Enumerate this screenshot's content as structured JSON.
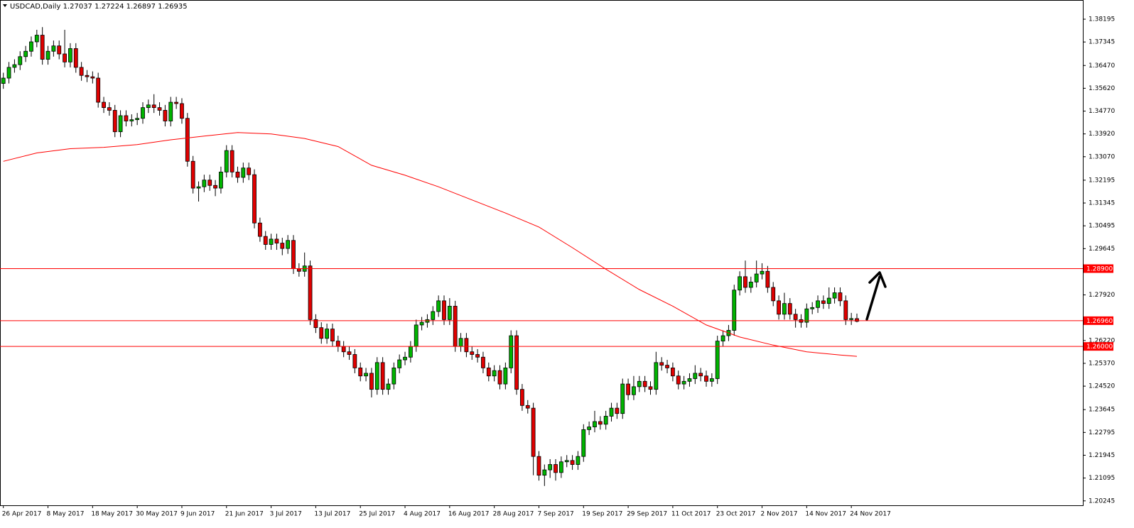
{
  "chart_data": {
    "type": "candlestick",
    "title": "USDCAD,Daily",
    "up_color": "#00b400",
    "down_color": "#e00000",
    "open": [
      1.358,
      1.36,
      1.364,
      1.365,
      1.368,
      1.37,
      1.3735,
      1.376,
      1.367,
      1.37,
      1.372,
      1.369,
      1.366,
      1.371,
      1.364,
      1.361,
      1.3605,
      1.36,
      1.351,
      1.349,
      1.348,
      1.34,
      1.346,
      1.344,
      1.3445,
      1.345,
      1.349,
      1.35,
      1.349,
      1.348,
      1.344,
      1.351,
      1.3505,
      1.345,
      1.329,
      1.319,
      1.3195,
      1.322,
      1.32,
      1.319,
      1.325,
      1.333,
      1.325,
      1.323,
      1.3265,
      1.324,
      1.306,
      1.301,
      1.298,
      1.3,
      1.2985,
      1.2965,
      1.2995,
      1.289,
      1.288,
      1.29,
      1.27,
      1.267,
      1.263,
      1.2665,
      1.262,
      1.26,
      1.258,
      1.257,
      1.252,
      1.249,
      1.25,
      1.244,
      1.254,
      1.244,
      1.246,
      1.252,
      1.255,
      1.256,
      1.26,
      1.268,
      1.269,
      1.27,
      1.273,
      1.277,
      1.27,
      1.275,
      1.26,
      1.263,
      1.258,
      1.257,
      1.256,
      1.252,
      1.249,
      1.251,
      1.246,
      1.252,
      1.264,
      1.244,
      1.238,
      1.237,
      1.219,
      1.212,
      1.214,
      1.216,
      1.213,
      1.217,
      1.2175,
      1.216,
      1.219,
      1.229,
      1.23,
      1.232,
      1.231,
      1.234,
      1.237,
      1.235,
      1.246,
      1.242,
      1.245,
      1.247,
      1.245,
      1.244,
      1.254,
      1.253,
      1.252,
      1.249,
      1.246,
      1.247,
      1.248,
      1.25,
      1.249,
      1.247,
      1.248,
      1.262,
      1.264,
      1.266,
      1.281,
      1.286,
      1.282,
      1.284,
      1.287,
      1.288,
      1.282,
      1.277,
      1.272,
      1.276,
      1.272,
      1.27,
      1.269,
      1.274,
      1.2745,
      1.277,
      1.276,
      1.278,
      1.28,
      1.277,
      1.27,
      1.27037
    ],
    "high": [
      1.362,
      1.366,
      1.367,
      1.37,
      1.372,
      1.3755,
      1.378,
      1.379,
      1.372,
      1.374,
      1.374,
      1.378,
      1.373,
      1.373,
      1.366,
      1.363,
      1.3625,
      1.362,
      1.353,
      1.351,
      1.35,
      1.348,
      1.348,
      1.3465,
      1.347,
      1.351,
      1.352,
      1.354,
      1.351,
      1.35,
      1.353,
      1.353,
      1.3525,
      1.347,
      1.331,
      1.3215,
      1.324,
      1.324,
      1.322,
      1.327,
      1.335,
      1.335,
      1.327,
      1.3285,
      1.3285,
      1.326,
      1.308,
      1.303,
      1.302,
      1.302,
      1.3005,
      1.3015,
      1.3015,
      1.291,
      1.295,
      1.292,
      1.272,
      1.269,
      1.2685,
      1.2685,
      1.264,
      1.262,
      1.26,
      1.259,
      1.254,
      1.252,
      1.252,
      1.256,
      1.256,
      1.248,
      1.254,
      1.257,
      1.258,
      1.262,
      1.27,
      1.271,
      1.272,
      1.275,
      1.279,
      1.279,
      1.278,
      1.277,
      1.265,
      1.265,
      1.26,
      1.259,
      1.258,
      1.254,
      1.253,
      1.253,
      1.254,
      1.266,
      1.266,
      1.246,
      1.24,
      1.239,
      1.221,
      1.216,
      1.218,
      1.218,
      1.219,
      1.2195,
      1.2195,
      1.221,
      1.231,
      1.232,
      1.236,
      1.234,
      1.236,
      1.239,
      1.239,
      1.248,
      1.248,
      1.249,
      1.249,
      1.249,
      1.247,
      1.258,
      1.256,
      1.255,
      1.254,
      1.251,
      1.249,
      1.25,
      1.253,
      1.252,
      1.251,
      1.25,
      1.264,
      1.266,
      1.268,
      1.283,
      1.288,
      1.292,
      1.286,
      1.292,
      1.291,
      1.29,
      1.284,
      1.279,
      1.28,
      1.278,
      1.274,
      1.272,
      1.276,
      1.2765,
      1.279,
      1.279,
      1.282,
      1.282,
      1.282,
      1.279,
      1.2725,
      1.27224
    ],
    "low": [
      1.356,
      1.358,
      1.362,
      1.363,
      1.366,
      1.368,
      1.3715,
      1.365,
      1.365,
      1.368,
      1.367,
      1.364,
      1.364,
      1.362,
      1.359,
      1.3585,
      1.358,
      1.349,
      1.347,
      1.346,
      1.338,
      1.338,
      1.342,
      1.342,
      1.3425,
      1.343,
      1.347,
      1.347,
      1.346,
      1.342,
      1.342,
      1.3485,
      1.343,
      1.327,
      1.317,
      1.314,
      1.3175,
      1.318,
      1.316,
      1.317,
      1.323,
      1.323,
      1.321,
      1.321,
      1.322,
      1.304,
      1.299,
      1.296,
      1.296,
      1.296,
      1.294,
      1.2945,
      1.287,
      1.286,
      1.286,
      1.268,
      1.265,
      1.261,
      1.261,
      1.26,
      1.258,
      1.256,
      1.255,
      1.25,
      1.247,
      1.247,
      1.241,
      1.242,
      1.242,
      1.242,
      1.244,
      1.25,
      1.253,
      1.254,
      1.258,
      1.266,
      1.267,
      1.268,
      1.271,
      1.268,
      1.268,
      1.258,
      1.258,
      1.256,
      1.255,
      1.254,
      1.25,
      1.247,
      1.247,
      1.244,
      1.244,
      1.25,
      1.242,
      1.236,
      1.235,
      1.212,
      1.21,
      1.208,
      1.211,
      1.21,
      1.211,
      1.215,
      1.214,
      1.214,
      1.217,
      1.227,
      1.228,
      1.229,
      1.229,
      1.232,
      1.233,
      1.233,
      1.24,
      1.24,
      1.243,
      1.243,
      1.242,
      1.242,
      1.251,
      1.25,
      1.247,
      1.244,
      1.244,
      1.245,
      1.246,
      1.247,
      1.245,
      1.245,
      1.246,
      1.26,
      1.262,
      1.264,
      1.279,
      1.28,
      1.28,
      1.282,
      1.285,
      1.28,
      1.275,
      1.27,
      1.27,
      1.27,
      1.267,
      1.267,
      1.267,
      1.272,
      1.2725,
      1.274,
      1.274,
      1.276,
      1.275,
      1.268,
      1.268,
      1.26897
    ],
    "close": [
      1.36,
      1.364,
      1.365,
      1.368,
      1.37,
      1.3735,
      1.376,
      1.367,
      1.37,
      1.372,
      1.369,
      1.366,
      1.371,
      1.364,
      1.361,
      1.3605,
      1.36,
      1.351,
      1.349,
      1.348,
      1.34,
      1.346,
      1.344,
      1.3445,
      1.345,
      1.349,
      1.35,
      1.349,
      1.348,
      1.344,
      1.351,
      1.3505,
      1.345,
      1.329,
      1.319,
      1.3195,
      1.322,
      1.32,
      1.319,
      1.325,
      1.333,
      1.325,
      1.323,
      1.3265,
      1.324,
      1.306,
      1.301,
      1.298,
      1.3,
      1.2985,
      1.2965,
      1.2995,
      1.289,
      1.288,
      1.29,
      1.27,
      1.267,
      1.263,
      1.2665,
      1.262,
      1.26,
      1.258,
      1.257,
      1.252,
      1.249,
      1.25,
      1.244,
      1.254,
      1.244,
      1.246,
      1.252,
      1.255,
      1.256,
      1.26,
      1.268,
      1.269,
      1.27,
      1.273,
      1.277,
      1.27,
      1.275,
      1.26,
      1.263,
      1.258,
      1.257,
      1.256,
      1.252,
      1.249,
      1.251,
      1.246,
      1.252,
      1.264,
      1.244,
      1.238,
      1.237,
      1.219,
      1.212,
      1.214,
      1.216,
      1.213,
      1.217,
      1.2175,
      1.216,
      1.219,
      1.229,
      1.23,
      1.232,
      1.231,
      1.234,
      1.237,
      1.235,
      1.246,
      1.242,
      1.245,
      1.247,
      1.245,
      1.244,
      1.254,
      1.253,
      1.252,
      1.249,
      1.246,
      1.247,
      1.248,
      1.25,
      1.249,
      1.247,
      1.248,
      1.262,
      1.264,
      1.266,
      1.281,
      1.286,
      1.282,
      1.284,
      1.287,
      1.288,
      1.282,
      1.277,
      1.272,
      1.276,
      1.272,
      1.27,
      1.269,
      1.274,
      1.2745,
      1.277,
      1.276,
      1.278,
      1.28,
      1.277,
      1.27,
      1.2704,
      1.26935
    ],
    "moving_average": {
      "color": "#ff0000",
      "x": [
        0,
        6,
        12,
        18,
        24,
        30,
        36,
        42,
        48,
        54,
        60,
        66,
        72,
        78,
        84,
        90,
        96,
        102,
        108,
        114,
        120,
        126,
        132,
        138,
        144,
        150,
        153
      ],
      "values": [
        1.329,
        1.3321,
        1.3337,
        1.3342,
        1.3352,
        1.337,
        1.3384,
        1.3397,
        1.3392,
        1.3375,
        1.3345,
        1.3275,
        1.3238,
        1.3195,
        1.3146,
        1.3097,
        1.3045,
        1.2968,
        1.2888,
        1.2812,
        1.275,
        1.268,
        1.2635,
        1.2605,
        1.258,
        1.2568,
        1.2563
      ]
    },
    "hlines": {
      "color": "#ff0000",
      "levels": [
        {
          "value": 1.289,
          "label": "1.28900"
        },
        {
          "value": 1.2696,
          "label": "1.26960"
        },
        {
          "value": 1.26,
          "label": "1.26000"
        }
      ]
    },
    "xlim": [
      -0.6,
      193.5
    ],
    "xticks": [
      {
        "value": 0,
        "label": "26 Apr 2017"
      },
      {
        "value": 8,
        "label": "8 May 2017"
      },
      {
        "value": 16,
        "label": "18 May 2017"
      },
      {
        "value": 24,
        "label": "30 May 2017"
      },
      {
        "value": 32,
        "label": "9 Jun 2017"
      },
      {
        "value": 40,
        "label": "21 Jun 2017"
      },
      {
        "value": 48,
        "label": "3 Jul 2017"
      },
      {
        "value": 56,
        "label": "13 Jul 2017"
      },
      {
        "value": 64,
        "label": "25 Jul 2017"
      },
      {
        "value": 72,
        "label": "4 Aug 2017"
      },
      {
        "value": 80,
        "label": "16 Aug 2017"
      },
      {
        "value": 88,
        "label": "28 Aug 2017"
      },
      {
        "value": 96,
        "label": "7 Sep 2017"
      },
      {
        "value": 104,
        "label": "19 Sep 2017"
      },
      {
        "value": 112,
        "label": "29 Sep 2017"
      },
      {
        "value": 120,
        "label": "11 Oct 2017"
      },
      {
        "value": 128,
        "label": "23 Oct 2017"
      },
      {
        "value": 136,
        "label": "2 Nov 2017"
      },
      {
        "value": 144,
        "label": "14 Nov 2017"
      },
      {
        "value": 152,
        "label": "24 Nov 2017"
      }
    ],
    "ylim": [
      1.2008,
      1.3891
    ],
    "yticks": [
      1.38195,
      1.37345,
      {
        "value": 1.3647,
        "label": "1.36470"
      },
      {
        "value": 1.3562,
        "label": "1.35620"
      },
      {
        "value": 1.3477,
        "label": "1.34770"
      },
      {
        "value": 1.3392,
        "label": "1.33920"
      },
      {
        "value": 1.3307,
        "label": "1.33070"
      },
      1.32195,
      1.31345,
      1.30495,
      1.29645,
      {
        "value": 1.2792,
        "label": "1.27920"
      },
      {
        "value": 1.2622,
        "label": "1.26220"
      },
      {
        "value": 1.2537,
        "label": "1.25370"
      },
      {
        "value": 1.2452,
        "label": "1.24520"
      },
      1.23645,
      1.22795,
      1.21945,
      1.21095,
      1.20245
    ]
  }
}
